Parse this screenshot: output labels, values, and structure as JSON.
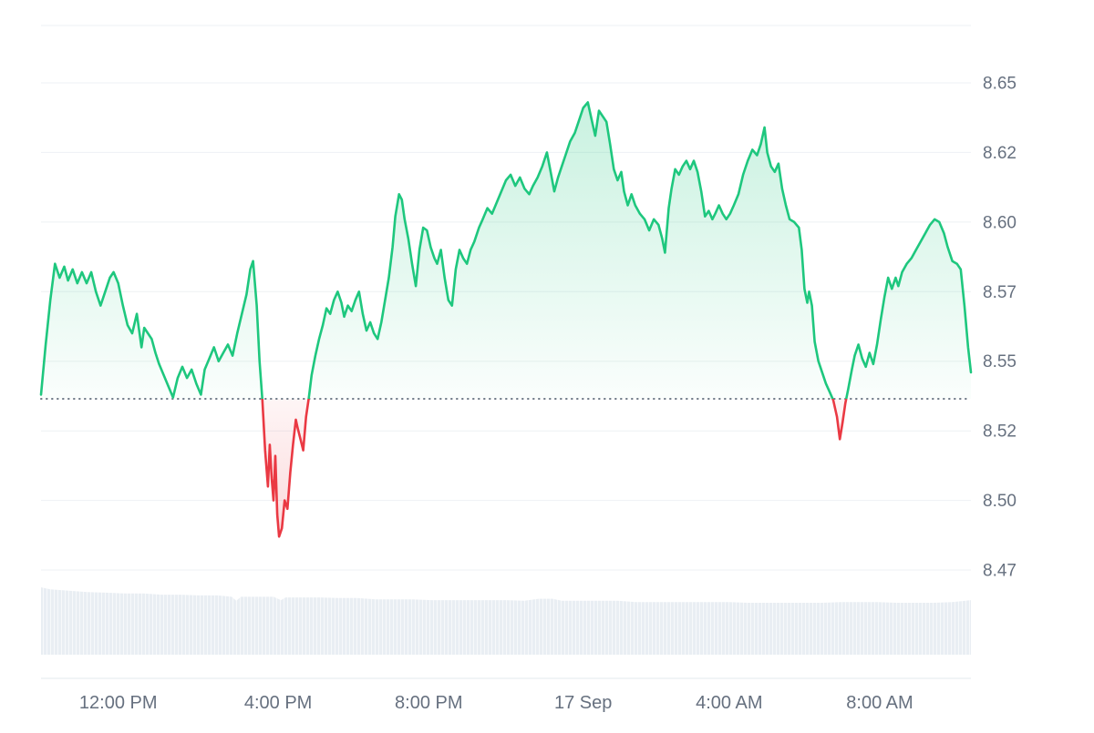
{
  "chart_data": {
    "type": "area",
    "title": "",
    "ylabel": "",
    "xlabel": "",
    "ylim": [
      8.44,
      8.67
    ],
    "grid": "horizontal",
    "legend": "none",
    "baseline": 8.5365,
    "colors": {
      "up": "#1ec77e",
      "down": "#ea3943",
      "grid": "#eef1f4",
      "axis_line": "#e3e8ee",
      "baseline": "#6f7a87",
      "axis_label": "#66707f",
      "volume": "#e9eef3"
    },
    "y_axis": {
      "tick_values": [
        8.65,
        8.625,
        8.6,
        8.575,
        8.55,
        8.525,
        8.5,
        8.475
      ],
      "tick_labels": [
        "8.65",
        "8.62",
        "8.60",
        "8.57",
        "8.55",
        "8.52",
        "8.50",
        "8.47"
      ]
    },
    "x_axis": {
      "ticks": [
        {
          "f": 0.083,
          "label": "12:00 PM"
        },
        {
          "f": 0.255,
          "label": "4:00 PM"
        },
        {
          "f": 0.417,
          "label": "8:00 PM"
        },
        {
          "f": 0.583,
          "label": "17 Sep"
        },
        {
          "f": 0.74,
          "label": "4:00 AM"
        },
        {
          "f": 0.902,
          "label": "8:00 AM"
        }
      ]
    },
    "points": [
      [
        0.0,
        8.538
      ],
      [
        0.005,
        8.556
      ],
      [
        0.01,
        8.572
      ],
      [
        0.015,
        8.585
      ],
      [
        0.02,
        8.58
      ],
      [
        0.025,
        8.584
      ],
      [
        0.029,
        8.579
      ],
      [
        0.034,
        8.583
      ],
      [
        0.039,
        8.578
      ],
      [
        0.044,
        8.582
      ],
      [
        0.049,
        8.578
      ],
      [
        0.054,
        8.582
      ],
      [
        0.059,
        8.575
      ],
      [
        0.064,
        8.57
      ],
      [
        0.069,
        8.575
      ],
      [
        0.074,
        8.58
      ],
      [
        0.078,
        8.582
      ],
      [
        0.083,
        8.578
      ],
      [
        0.088,
        8.57
      ],
      [
        0.093,
        8.563
      ],
      [
        0.098,
        8.56
      ],
      [
        0.103,
        8.567
      ],
      [
        0.108,
        8.555
      ],
      [
        0.111,
        8.562
      ],
      [
        0.115,
        8.56
      ],
      [
        0.119,
        8.558
      ],
      [
        0.123,
        8.553
      ],
      [
        0.127,
        8.549
      ],
      [
        0.132,
        8.545
      ],
      [
        0.137,
        8.541
      ],
      [
        0.142,
        8.537
      ],
      [
        0.147,
        8.544
      ],
      [
        0.152,
        8.548
      ],
      [
        0.157,
        8.544
      ],
      [
        0.162,
        8.547
      ],
      [
        0.167,
        8.542
      ],
      [
        0.172,
        8.538
      ],
      [
        0.176,
        8.547
      ],
      [
        0.181,
        8.551
      ],
      [
        0.186,
        8.555
      ],
      [
        0.191,
        8.55
      ],
      [
        0.196,
        8.553
      ],
      [
        0.201,
        8.556
      ],
      [
        0.206,
        8.552
      ],
      [
        0.211,
        8.56
      ],
      [
        0.216,
        8.567
      ],
      [
        0.221,
        8.574
      ],
      [
        0.225,
        8.583
      ],
      [
        0.228,
        8.586
      ],
      [
        0.232,
        8.57
      ],
      [
        0.235,
        8.55
      ],
      [
        0.238,
        8.536
      ],
      [
        0.241,
        8.518
      ],
      [
        0.244,
        8.505
      ],
      [
        0.246,
        8.52
      ],
      [
        0.248,
        8.508
      ],
      [
        0.25,
        8.5
      ],
      [
        0.252,
        8.516
      ],
      [
        0.254,
        8.495
      ],
      [
        0.256,
        8.487
      ],
      [
        0.259,
        8.49
      ],
      [
        0.262,
        8.5
      ],
      [
        0.265,
        8.497
      ],
      [
        0.268,
        8.51
      ],
      [
        0.271,
        8.52
      ],
      [
        0.274,
        8.529
      ],
      [
        0.276,
        8.526
      ],
      [
        0.279,
        8.522
      ],
      [
        0.282,
        8.518
      ],
      [
        0.285,
        8.53
      ],
      [
        0.288,
        8.537
      ],
      [
        0.291,
        8.545
      ],
      [
        0.295,
        8.552
      ],
      [
        0.299,
        8.558
      ],
      [
        0.303,
        8.563
      ],
      [
        0.307,
        8.569
      ],
      [
        0.311,
        8.567
      ],
      [
        0.315,
        8.572
      ],
      [
        0.319,
        8.575
      ],
      [
        0.323,
        8.571
      ],
      [
        0.326,
        8.566
      ],
      [
        0.33,
        8.57
      ],
      [
        0.334,
        8.568
      ],
      [
        0.338,
        8.572
      ],
      [
        0.342,
        8.575
      ],
      [
        0.346,
        8.567
      ],
      [
        0.35,
        8.561
      ],
      [
        0.354,
        8.564
      ],
      [
        0.358,
        8.56
      ],
      [
        0.362,
        8.558
      ],
      [
        0.366,
        8.564
      ],
      [
        0.37,
        8.572
      ],
      [
        0.374,
        8.58
      ],
      [
        0.378,
        8.591
      ],
      [
        0.381,
        8.602
      ],
      [
        0.385,
        8.61
      ],
      [
        0.388,
        8.608
      ],
      [
        0.391,
        8.601
      ],
      [
        0.395,
        8.594
      ],
      [
        0.399,
        8.585
      ],
      [
        0.403,
        8.577
      ],
      [
        0.407,
        8.59
      ],
      [
        0.411,
        8.598
      ],
      [
        0.415,
        8.597
      ],
      [
        0.419,
        8.591
      ],
      [
        0.423,
        8.587
      ],
      [
        0.426,
        8.585
      ],
      [
        0.43,
        8.59
      ],
      [
        0.434,
        8.58
      ],
      [
        0.438,
        8.572
      ],
      [
        0.442,
        8.57
      ],
      [
        0.446,
        8.583
      ],
      [
        0.45,
        8.59
      ],
      [
        0.454,
        8.587
      ],
      [
        0.458,
        8.585
      ],
      [
        0.462,
        8.59
      ],
      [
        0.466,
        8.593
      ],
      [
        0.471,
        8.598
      ],
      [
        0.475,
        8.601
      ],
      [
        0.48,
        8.605
      ],
      [
        0.485,
        8.603
      ],
      [
        0.49,
        8.607
      ],
      [
        0.495,
        8.611
      ],
      [
        0.5,
        8.615
      ],
      [
        0.505,
        8.617
      ],
      [
        0.51,
        8.613
      ],
      [
        0.515,
        8.616
      ],
      [
        0.52,
        8.612
      ],
      [
        0.525,
        8.61
      ],
      [
        0.529,
        8.613
      ],
      [
        0.534,
        8.616
      ],
      [
        0.539,
        8.62
      ],
      [
        0.544,
        8.625
      ],
      [
        0.548,
        8.618
      ],
      [
        0.552,
        8.611
      ],
      [
        0.556,
        8.616
      ],
      [
        0.56,
        8.62
      ],
      [
        0.564,
        8.624
      ],
      [
        0.569,
        8.629
      ],
      [
        0.574,
        8.632
      ],
      [
        0.578,
        8.636
      ],
      [
        0.583,
        8.641
      ],
      [
        0.588,
        8.643
      ],
      [
        0.592,
        8.637
      ],
      [
        0.596,
        8.631
      ],
      [
        0.6,
        8.64
      ],
      [
        0.604,
        8.638
      ],
      [
        0.608,
        8.636
      ],
      [
        0.612,
        8.628
      ],
      [
        0.616,
        8.619
      ],
      [
        0.62,
        8.615
      ],
      [
        0.624,
        8.618
      ],
      [
        0.627,
        8.611
      ],
      [
        0.631,
        8.606
      ],
      [
        0.635,
        8.61
      ],
      [
        0.639,
        8.606
      ],
      [
        0.644,
        8.603
      ],
      [
        0.649,
        8.601
      ],
      [
        0.654,
        8.597
      ],
      [
        0.659,
        8.601
      ],
      [
        0.664,
        8.599
      ],
      [
        0.668,
        8.594
      ],
      [
        0.671,
        8.589
      ],
      [
        0.675,
        8.605
      ],
      [
        0.678,
        8.612
      ],
      [
        0.682,
        8.619
      ],
      [
        0.686,
        8.617
      ],
      [
        0.69,
        8.62
      ],
      [
        0.694,
        8.622
      ],
      [
        0.698,
        8.619
      ],
      [
        0.702,
        8.622
      ],
      [
        0.706,
        8.618
      ],
      [
        0.71,
        8.611
      ],
      [
        0.714,
        8.602
      ],
      [
        0.718,
        8.604
      ],
      [
        0.722,
        8.601
      ],
      [
        0.725,
        8.603
      ],
      [
        0.729,
        8.606
      ],
      [
        0.733,
        8.603
      ],
      [
        0.737,
        8.601
      ],
      [
        0.741,
        8.603
      ],
      [
        0.745,
        8.606
      ],
      [
        0.75,
        8.61
      ],
      [
        0.755,
        8.617
      ],
      [
        0.76,
        8.622
      ],
      [
        0.765,
        8.626
      ],
      [
        0.77,
        8.624
      ],
      [
        0.774,
        8.628
      ],
      [
        0.778,
        8.634
      ],
      [
        0.781,
        8.625
      ],
      [
        0.785,
        8.62
      ],
      [
        0.789,
        8.618
      ],
      [
        0.793,
        8.621
      ],
      [
        0.797,
        8.612
      ],
      [
        0.801,
        8.606
      ],
      [
        0.805,
        8.601
      ],
      [
        0.81,
        8.6
      ],
      [
        0.815,
        8.598
      ],
      [
        0.818,
        8.59
      ],
      [
        0.821,
        8.576
      ],
      [
        0.824,
        8.571
      ],
      [
        0.826,
        8.575
      ],
      [
        0.829,
        8.57
      ],
      [
        0.832,
        8.557
      ],
      [
        0.836,
        8.55
      ],
      [
        0.84,
        8.546
      ],
      [
        0.844,
        8.542
      ],
      [
        0.848,
        8.539
      ],
      [
        0.852,
        8.536
      ],
      [
        0.856,
        8.53
      ],
      [
        0.859,
        8.522
      ],
      [
        0.862,
        8.528
      ],
      [
        0.865,
        8.535
      ],
      [
        0.868,
        8.54
      ],
      [
        0.872,
        8.547
      ],
      [
        0.875,
        8.552
      ],
      [
        0.879,
        8.556
      ],
      [
        0.883,
        8.551
      ],
      [
        0.887,
        8.548
      ],
      [
        0.891,
        8.553
      ],
      [
        0.895,
        8.549
      ],
      [
        0.899,
        8.556
      ],
      [
        0.903,
        8.565
      ],
      [
        0.907,
        8.573
      ],
      [
        0.911,
        8.58
      ],
      [
        0.915,
        8.576
      ],
      [
        0.919,
        8.58
      ],
      [
        0.922,
        8.577
      ],
      [
        0.926,
        8.582
      ],
      [
        0.931,
        8.585
      ],
      [
        0.936,
        8.587
      ],
      [
        0.941,
        8.59
      ],
      [
        0.946,
        8.593
      ],
      [
        0.951,
        8.596
      ],
      [
        0.956,
        8.599
      ],
      [
        0.961,
        8.601
      ],
      [
        0.966,
        8.6
      ],
      [
        0.971,
        8.596
      ],
      [
        0.975,
        8.591
      ],
      [
        0.98,
        8.586
      ],
      [
        0.985,
        8.585
      ],
      [
        0.989,
        8.583
      ],
      [
        0.993,
        8.57
      ],
      [
        0.997,
        8.555
      ],
      [
        1.0,
        8.546
      ]
    ],
    "volume": [
      [
        0.0,
        1.0
      ],
      [
        0.01,
        0.97
      ],
      [
        0.02,
        0.96
      ],
      [
        0.03,
        0.95
      ],
      [
        0.05,
        0.93
      ],
      [
        0.07,
        0.92
      ],
      [
        0.09,
        0.91
      ],
      [
        0.11,
        0.91
      ],
      [
        0.13,
        0.89
      ],
      [
        0.15,
        0.89
      ],
      [
        0.17,
        0.88
      ],
      [
        0.19,
        0.88
      ],
      [
        0.205,
        0.86
      ],
      [
        0.21,
        0.8
      ],
      [
        0.215,
        0.86
      ],
      [
        0.23,
        0.86
      ],
      [
        0.25,
        0.86
      ],
      [
        0.258,
        0.81
      ],
      [
        0.263,
        0.85
      ],
      [
        0.28,
        0.85
      ],
      [
        0.3,
        0.85
      ],
      [
        0.32,
        0.84
      ],
      [
        0.34,
        0.84
      ],
      [
        0.36,
        0.82
      ],
      [
        0.38,
        0.82
      ],
      [
        0.4,
        0.82
      ],
      [
        0.42,
        0.81
      ],
      [
        0.44,
        0.81
      ],
      [
        0.46,
        0.81
      ],
      [
        0.48,
        0.81
      ],
      [
        0.5,
        0.81
      ],
      [
        0.52,
        0.8
      ],
      [
        0.535,
        0.83
      ],
      [
        0.55,
        0.83
      ],
      [
        0.56,
        0.8
      ],
      [
        0.58,
        0.8
      ],
      [
        0.6,
        0.8
      ],
      [
        0.62,
        0.8
      ],
      [
        0.64,
        0.78
      ],
      [
        0.66,
        0.78
      ],
      [
        0.68,
        0.78
      ],
      [
        0.7,
        0.78
      ],
      [
        0.72,
        0.78
      ],
      [
        0.74,
        0.78
      ],
      [
        0.76,
        0.77
      ],
      [
        0.78,
        0.77
      ],
      [
        0.8,
        0.77
      ],
      [
        0.82,
        0.77
      ],
      [
        0.84,
        0.77
      ],
      [
        0.86,
        0.78
      ],
      [
        0.88,
        0.78
      ],
      [
        0.9,
        0.78
      ],
      [
        0.92,
        0.77
      ],
      [
        0.94,
        0.77
      ],
      [
        0.96,
        0.77
      ],
      [
        0.98,
        0.78
      ],
      [
        1.0,
        0.81
      ]
    ]
  }
}
